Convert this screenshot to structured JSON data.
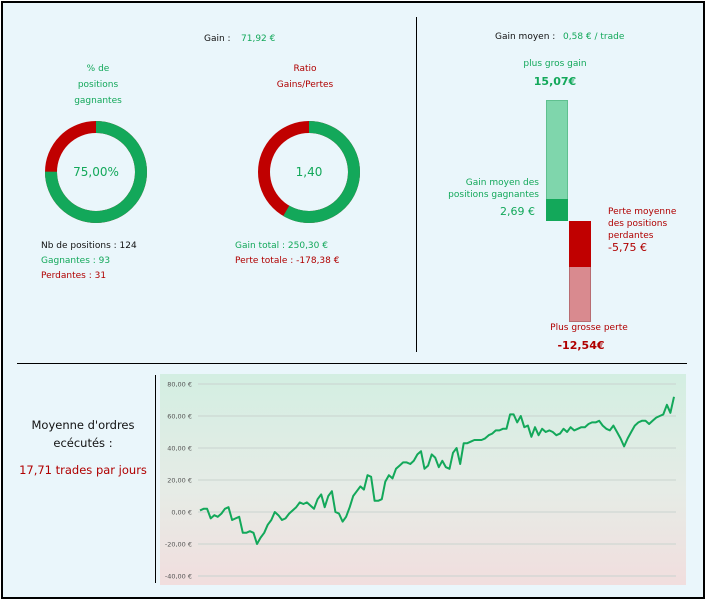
{
  "colors": {
    "green": "#13a85a",
    "red": "#c00000",
    "light_green": "#7fd6ac",
    "light_red": "#d98a8f",
    "background": "#eaf6fb"
  },
  "top_left": {
    "gain_label": "Gain :",
    "gain_value": "71,92 €",
    "pct_winning": {
      "title_lines": [
        "% de",
        "positions",
        "gagnantes"
      ],
      "value_text": "75,00%",
      "fraction": 0.75
    },
    "ratio": {
      "title_lines": [
        "Ratio",
        "Gains/Pertes"
      ],
      "value_text": "1,40",
      "fraction": 0.5834
    },
    "counts": {
      "total": "Nb de positions : 124",
      "winners": "Gagnantes : 93",
      "losers": "Perdantes : 31"
    },
    "totals": {
      "gain_total": "Gain total : 250,30 €",
      "loss_total": "Perte totale : -178,38 €"
    }
  },
  "top_right": {
    "avg_gain_label": "Gain moyen :",
    "avg_gain_value": "0,58 € / trade",
    "biggest_gain_label": "plus gros gain",
    "biggest_gain_value": "15,07€",
    "avg_win_label_lines": [
      "Gain moyen des",
      "positions gagnantes"
    ],
    "avg_win_value": "2,69 €",
    "avg_loss_label_lines": [
      "Perte moyenne",
      "des positions",
      "perdantes"
    ],
    "avg_loss_value": "-5,75 €",
    "biggest_loss_label": "Plus grosse perte",
    "biggest_loss_value": "-12,54€",
    "bar_data": {
      "max_gain": 15.07,
      "avg_gain": 2.69,
      "avg_loss": -5.75,
      "max_loss": -12.54
    }
  },
  "bottom_left": {
    "title_lines": [
      "Moyenne d'ordres",
      "ecécutés :"
    ],
    "value": "17,71 trades par jours"
  },
  "chart_data": {
    "type": "line",
    "ylim": [
      -40,
      80
    ],
    "y_ticks": [
      "80,00 €",
      "60,00 €",
      "40,00 €",
      "20,00 €",
      "0,00 €",
      "-20,00 €",
      "-40,00 €"
    ],
    "y_tick_values": [
      80,
      60,
      40,
      20,
      0,
      -20,
      -40
    ],
    "grid": true,
    "values": [
      1,
      2,
      2,
      -4,
      -2,
      -3,
      -1,
      2,
      3,
      -5,
      -4,
      -3,
      -13,
      -13,
      -12,
      -13,
      -20,
      -16,
      -13,
      -8,
      -5,
      0,
      -2,
      -5,
      -4,
      -1,
      1,
      3,
      6,
      5,
      6,
      4,
      2,
      8,
      11,
      3,
      10,
      13,
      0,
      -1,
      -6,
      -3,
      3,
      10,
      13,
      16,
      14,
      23,
      22,
      7,
      7,
      8,
      19,
      23,
      21,
      27,
      29,
      31,
      31,
      30,
      32,
      36,
      38,
      27,
      29,
      36,
      34,
      28,
      32,
      28,
      27,
      37,
      40,
      30,
      43,
      43,
      44,
      45,
      45,
      45,
      46,
      48,
      49,
      51,
      51,
      52,
      52,
      61,
      61,
      56,
      60,
      53,
      54,
      47,
      53,
      48,
      52,
      50,
      51,
      50,
      48,
      49,
      52,
      50,
      53,
      51,
      52,
      53,
      53,
      55,
      56,
      56,
      57,
      54,
      52,
      51,
      54,
      50,
      46,
      41,
      46,
      50,
      54,
      56,
      57,
      57,
      55,
      57,
      59,
      60,
      61,
      67,
      62,
      72
    ]
  }
}
